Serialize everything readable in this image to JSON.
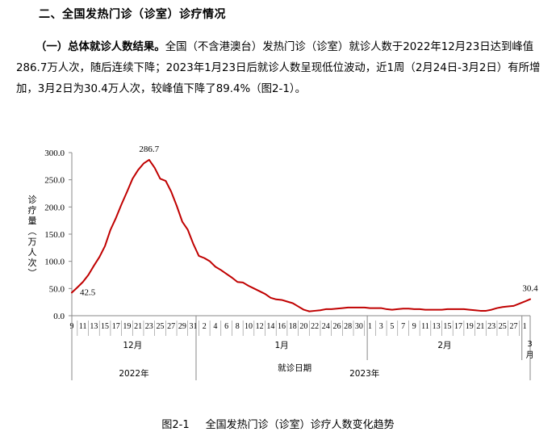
{
  "section": {
    "heading": "二、全国发热门诊（诊室）诊疗情况"
  },
  "paragraph": {
    "subheading": "（一）总体就诊人数结果。",
    "body": "全国（不含港澳台）发热门诊（诊室）就诊人数于2022年12月23日达到峰值286.7万人次，随后连续下降；2023年1月23日后就诊人数呈现低位波动，近1周（2月24日-3月2日）有所增加，3月2日为30.4万人次，较峰值下降了89.4%（图2-1）。"
  },
  "figure": {
    "number": "图2-1",
    "caption": "全国发热门诊（诊室）诊疗人数变化趋势"
  },
  "colors": {
    "line": "#c00000",
    "axis": "#888888",
    "text": "#000000"
  },
  "chart_data": {
    "type": "line",
    "title": "",
    "ylabel": "诊疗量（万人次）",
    "xlabel": "就诊日期",
    "ylim": [
      0,
      300
    ],
    "yticks": [
      "0.0",
      "50.0",
      "100.0",
      "150.0",
      "200.0",
      "250.0",
      "300.0"
    ],
    "grid": false,
    "x_tick_labels": [
      "9",
      "11",
      "13",
      "15",
      "17",
      "19",
      "21",
      "23",
      "25",
      "27",
      "29",
      "31",
      "2",
      "4",
      "6",
      "8",
      "10",
      "12",
      "14",
      "16",
      "18",
      "20",
      "22",
      "24",
      "26",
      "28",
      "30",
      "1",
      "3",
      "5",
      "7",
      "9",
      "11",
      "13",
      "15",
      "17",
      "19",
      "21",
      "23",
      "25",
      "27",
      "1"
    ],
    "month_labels": [
      "12月",
      "1月",
      "2月",
      "3月"
    ],
    "year_labels": [
      "2022年",
      "2023年"
    ],
    "data_labels": [
      {
        "x": "2022-12-09",
        "text": "42.5"
      },
      {
        "x": "2022-12-23",
        "text": "286.7"
      },
      {
        "x": "2023-03-02",
        "text": "30.4"
      }
    ],
    "series": [
      {
        "x": [
          "2022-12-09",
          "2022-12-10",
          "2022-12-11",
          "2022-12-12",
          "2022-12-13",
          "2022-12-14",
          "2022-12-15",
          "2022-12-16",
          "2022-12-17",
          "2022-12-18",
          "2022-12-19",
          "2022-12-20",
          "2022-12-21",
          "2022-12-22",
          "2022-12-23",
          "2022-12-24",
          "2022-12-25",
          "2022-12-26",
          "2022-12-27",
          "2022-12-28",
          "2022-12-29",
          "2022-12-30",
          "2022-12-31",
          "2023-01-01",
          "2023-01-02",
          "2023-01-03",
          "2023-01-04",
          "2023-01-05",
          "2023-01-06",
          "2023-01-07",
          "2023-01-08",
          "2023-01-09",
          "2023-01-10",
          "2023-01-11",
          "2023-01-12",
          "2023-01-13",
          "2023-01-14",
          "2023-01-15",
          "2023-01-16",
          "2023-01-17",
          "2023-01-18",
          "2023-01-19",
          "2023-01-20",
          "2023-01-21",
          "2023-01-22",
          "2023-01-23",
          "2023-01-24",
          "2023-01-25",
          "2023-01-26",
          "2023-01-27",
          "2023-01-28",
          "2023-01-29",
          "2023-01-30",
          "2023-01-31",
          "2023-02-01",
          "2023-02-02",
          "2023-02-03",
          "2023-02-04",
          "2023-02-05",
          "2023-02-06",
          "2023-02-07",
          "2023-02-08",
          "2023-02-09",
          "2023-02-10",
          "2023-02-11",
          "2023-02-12",
          "2023-02-13",
          "2023-02-14",
          "2023-02-15",
          "2023-02-16",
          "2023-02-17",
          "2023-02-18",
          "2023-02-19",
          "2023-02-20",
          "2023-02-21",
          "2023-02-22",
          "2023-02-23",
          "2023-02-24",
          "2023-02-25",
          "2023-02-26",
          "2023-02-27",
          "2023-02-28",
          "2023-03-01",
          "2023-03-02"
        ],
        "values": [
          42.5,
          52,
          62,
          75,
          92,
          108,
          128,
          158,
          180,
          205,
          228,
          252,
          268,
          280,
          286.7,
          272,
          252,
          248,
          228,
          202,
          173,
          158,
          132,
          110,
          106,
          100,
          90,
          84,
          77,
          70,
          62,
          61,
          55,
          50,
          45,
          40,
          33,
          30,
          29,
          26,
          23,
          17,
          11,
          8,
          9,
          10,
          12,
          12,
          13,
          14,
          15,
          15,
          15,
          15,
          14,
          14,
          14,
          12,
          11,
          12,
          13,
          13,
          12,
          12,
          11,
          11,
          11,
          11,
          12,
          12,
          12,
          12,
          11,
          10,
          9,
          9,
          11,
          14,
          16,
          17,
          18,
          22,
          26,
          30.4
        ]
      }
    ]
  }
}
